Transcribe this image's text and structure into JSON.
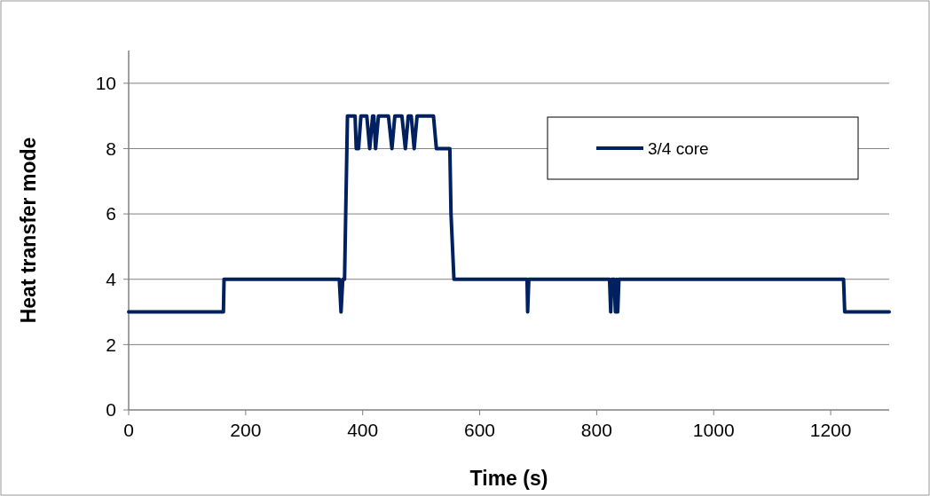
{
  "chart_data": {
    "type": "line",
    "xlabel": "Time (s)",
    "ylabel": "Heat transfer mode",
    "xlim": [
      0,
      1300
    ],
    "xticks": [
      0,
      200,
      400,
      600,
      800,
      1000,
      1200
    ],
    "ylim": [
      0,
      11
    ],
    "yticks": [
      0,
      2,
      4,
      6,
      8,
      10
    ],
    "grid": "y",
    "legend": "top right",
    "line_style": "solid",
    "series": [
      {
        "name": "3/4 core",
        "color": "#002060",
        "x": [
          0,
          162,
          163,
          360,
          363,
          366,
          369,
          374,
          387,
          389,
          393,
          397,
          407,
          412,
          417,
          419,
          422,
          427,
          444,
          450,
          455,
          467,
          473,
          478,
          483,
          488,
          493,
          521,
          526,
          549,
          551,
          556,
          681,
          682,
          684,
          822,
          824,
          826,
          830,
          832,
          834,
          836,
          838,
          1222,
          1224,
          1300
        ],
        "values": [
          3,
          3,
          4,
          4,
          3,
          4,
          4,
          9,
          9,
          8,
          8,
          9,
          9,
          8,
          9,
          9,
          8,
          9,
          9,
          8,
          9,
          9,
          8,
          9,
          9,
          8,
          9,
          9,
          8,
          8,
          6,
          4,
          4,
          3,
          4,
          4,
          3,
          4,
          4,
          3,
          4,
          3,
          4,
          4,
          3,
          3
        ]
      }
    ]
  }
}
